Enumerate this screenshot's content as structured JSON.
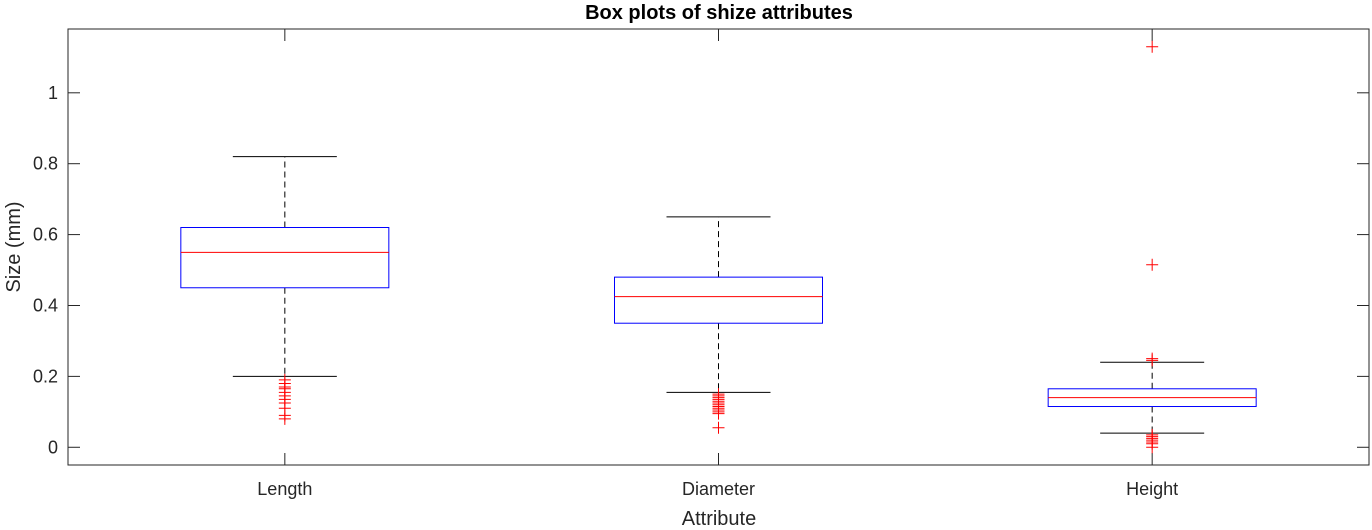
{
  "chart_data": {
    "type": "box",
    "title": "Box plots of shize attributes",
    "xlabel": "Attribute",
    "ylabel": "Size (mm)",
    "categories": [
      "Length",
      "Diameter",
      "Height"
    ],
    "ylim": [
      -0.05,
      1.18
    ],
    "yticks": [
      0,
      0.2,
      0.4,
      0.6,
      0.8,
      1
    ],
    "ytick_labels": [
      "0",
      "0.2",
      "0.4",
      "0.6",
      "0.8",
      "1"
    ],
    "grid": false,
    "colors": {
      "box": "#0000ff",
      "median": "#ff0000",
      "whisker": "#000000",
      "outlier": "#ff0000",
      "axes": "#262626"
    },
    "boxes": [
      {
        "category": "Length",
        "whisker_low": 0.2,
        "q1": 0.45,
        "median": 0.55,
        "q3": 0.62,
        "whisker_high": 0.82,
        "outliers": [
          0.19,
          0.18,
          0.17,
          0.165,
          0.155,
          0.145,
          0.135,
          0.125,
          0.11,
          0.09,
          0.08
        ]
      },
      {
        "category": "Diameter",
        "whisker_low": 0.155,
        "q1": 0.35,
        "median": 0.425,
        "q3": 0.48,
        "whisker_high": 0.65,
        "outliers": [
          0.15,
          0.145,
          0.14,
          0.135,
          0.13,
          0.125,
          0.12,
          0.115,
          0.11,
          0.105,
          0.1,
          0.095,
          0.055
        ]
      },
      {
        "category": "Height",
        "whisker_low": 0.04,
        "q1": 0.115,
        "median": 0.14,
        "q3": 0.165,
        "whisker_high": 0.24,
        "outliers": [
          1.13,
          0.515,
          0.25,
          0.245,
          0.035,
          0.03,
          0.025,
          0.02,
          0.015,
          0.01,
          0.0
        ]
      }
    ]
  }
}
